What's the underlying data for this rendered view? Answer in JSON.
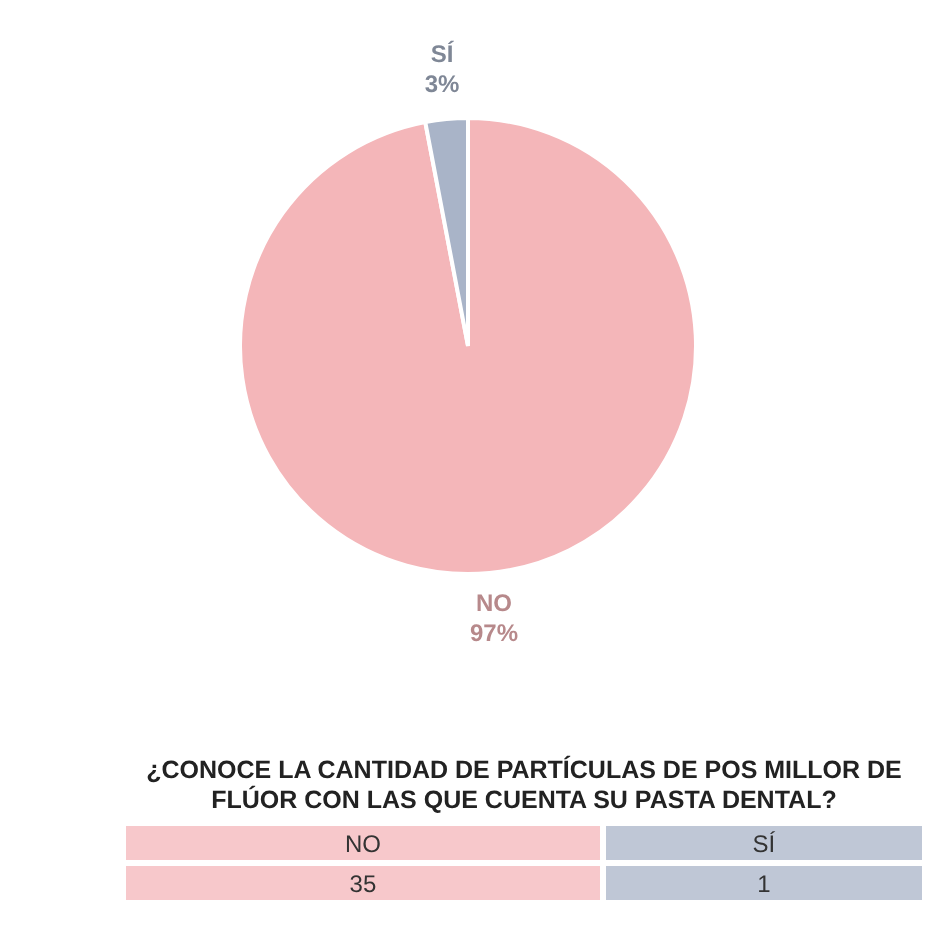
{
  "chart_data": {
    "type": "pie",
    "title": "¿CONOCE LA CANTIDAD DE PARTÍCULAS DE POS MILLOR DE FLÚOR CON LAS QUE CUENTA SU PASTA DENTAL?",
    "categories": [
      "NO",
      "SÍ"
    ],
    "values": [
      97,
      3
    ],
    "annotations": [
      "35",
      "1"
    ],
    "value_labels": [
      "97%",
      "3%"
    ],
    "colors": [
      "#f4b6b9",
      "#a9b4c8"
    ],
    "legend": false
  }
}
